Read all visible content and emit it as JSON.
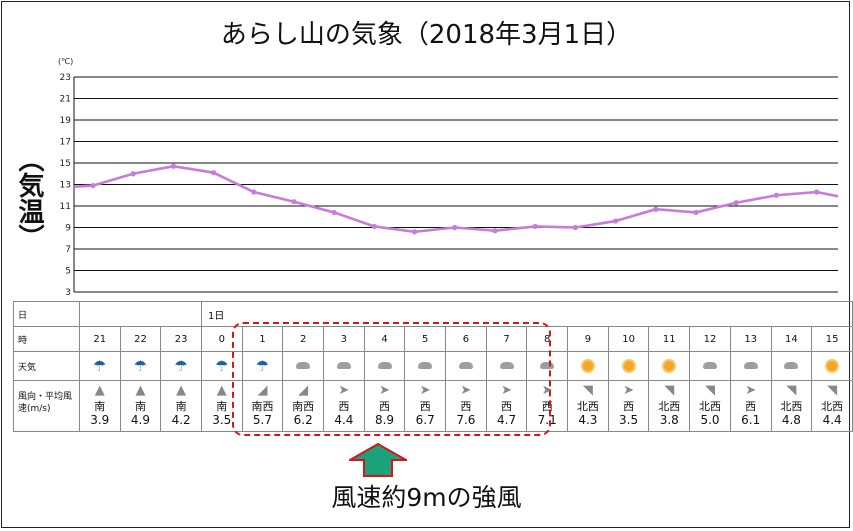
{
  "title": "あらし山の気象（2018年3月1日）",
  "y_unit": "(℃)",
  "y_axis_label": "（気温）",
  "chart_data": {
    "type": "line",
    "title": "あらし山の気象（2018年3月1日）",
    "ylabel": "（気温）",
    "y_unit": "(℃)",
    "ylim": [
      3,
      23
    ],
    "y_ticks": [
      3,
      5,
      7,
      9,
      11,
      13,
      15,
      17,
      19,
      21,
      23
    ],
    "grid": true,
    "color": "#c77bdb",
    "x": [
      "21",
      "22",
      "23",
      "0",
      "1",
      "2",
      "3",
      "4",
      "5",
      "6",
      "7",
      "8",
      "9",
      "10",
      "11",
      "12",
      "13",
      "14",
      "15"
    ],
    "series": [
      {
        "values": [
          12.9,
          14.0,
          14.7,
          14.1,
          12.3,
          11.4,
          10.4,
          9.1,
          8.6,
          9.0,
          8.7,
          9.1,
          9.0,
          9.6,
          10.7,
          10.4,
          11.3,
          12.0,
          12.3
        ]
      }
    ]
  },
  "table": {
    "row_labels": {
      "day": "日",
      "hour": "時",
      "weather": "天気",
      "wind": "風向・平均風速(m/s)"
    },
    "day_label": "1日",
    "hours": [
      "21",
      "22",
      "23",
      "0",
      "1",
      "2",
      "3",
      "4",
      "5",
      "6",
      "7",
      "8",
      "9",
      "10",
      "11",
      "12",
      "13",
      "14",
      "15"
    ],
    "weather": [
      "umbrella",
      "umbrella",
      "umbrella",
      "umbrella",
      "umbrella",
      "cloud",
      "cloud",
      "cloud",
      "cloud",
      "cloud",
      "cloud",
      "cloud",
      "sun",
      "sun",
      "sun",
      "cloud",
      "cloud",
      "cloud",
      "sun"
    ],
    "wind_dir": [
      "南",
      "南",
      "南",
      "南",
      "南西",
      "南西",
      "西",
      "西",
      "西",
      "西",
      "西",
      "西",
      "北西",
      "西",
      "北西",
      "北西",
      "西",
      "北西",
      "北西"
    ],
    "wind_speed": [
      "3.9",
      "4.9",
      "4.2",
      "3.5",
      "5.7",
      "6.2",
      "4.4",
      "8.9",
      "6.7",
      "7.6",
      "4.7",
      "7.1",
      "4.3",
      "3.5",
      "3.8",
      "5.0",
      "6.1",
      "4.8",
      "4.4"
    ]
  },
  "annotation": {
    "text": "風速約9mの強風",
    "highlight_color": "#d21818",
    "arrow_color": "#1aa37a"
  }
}
